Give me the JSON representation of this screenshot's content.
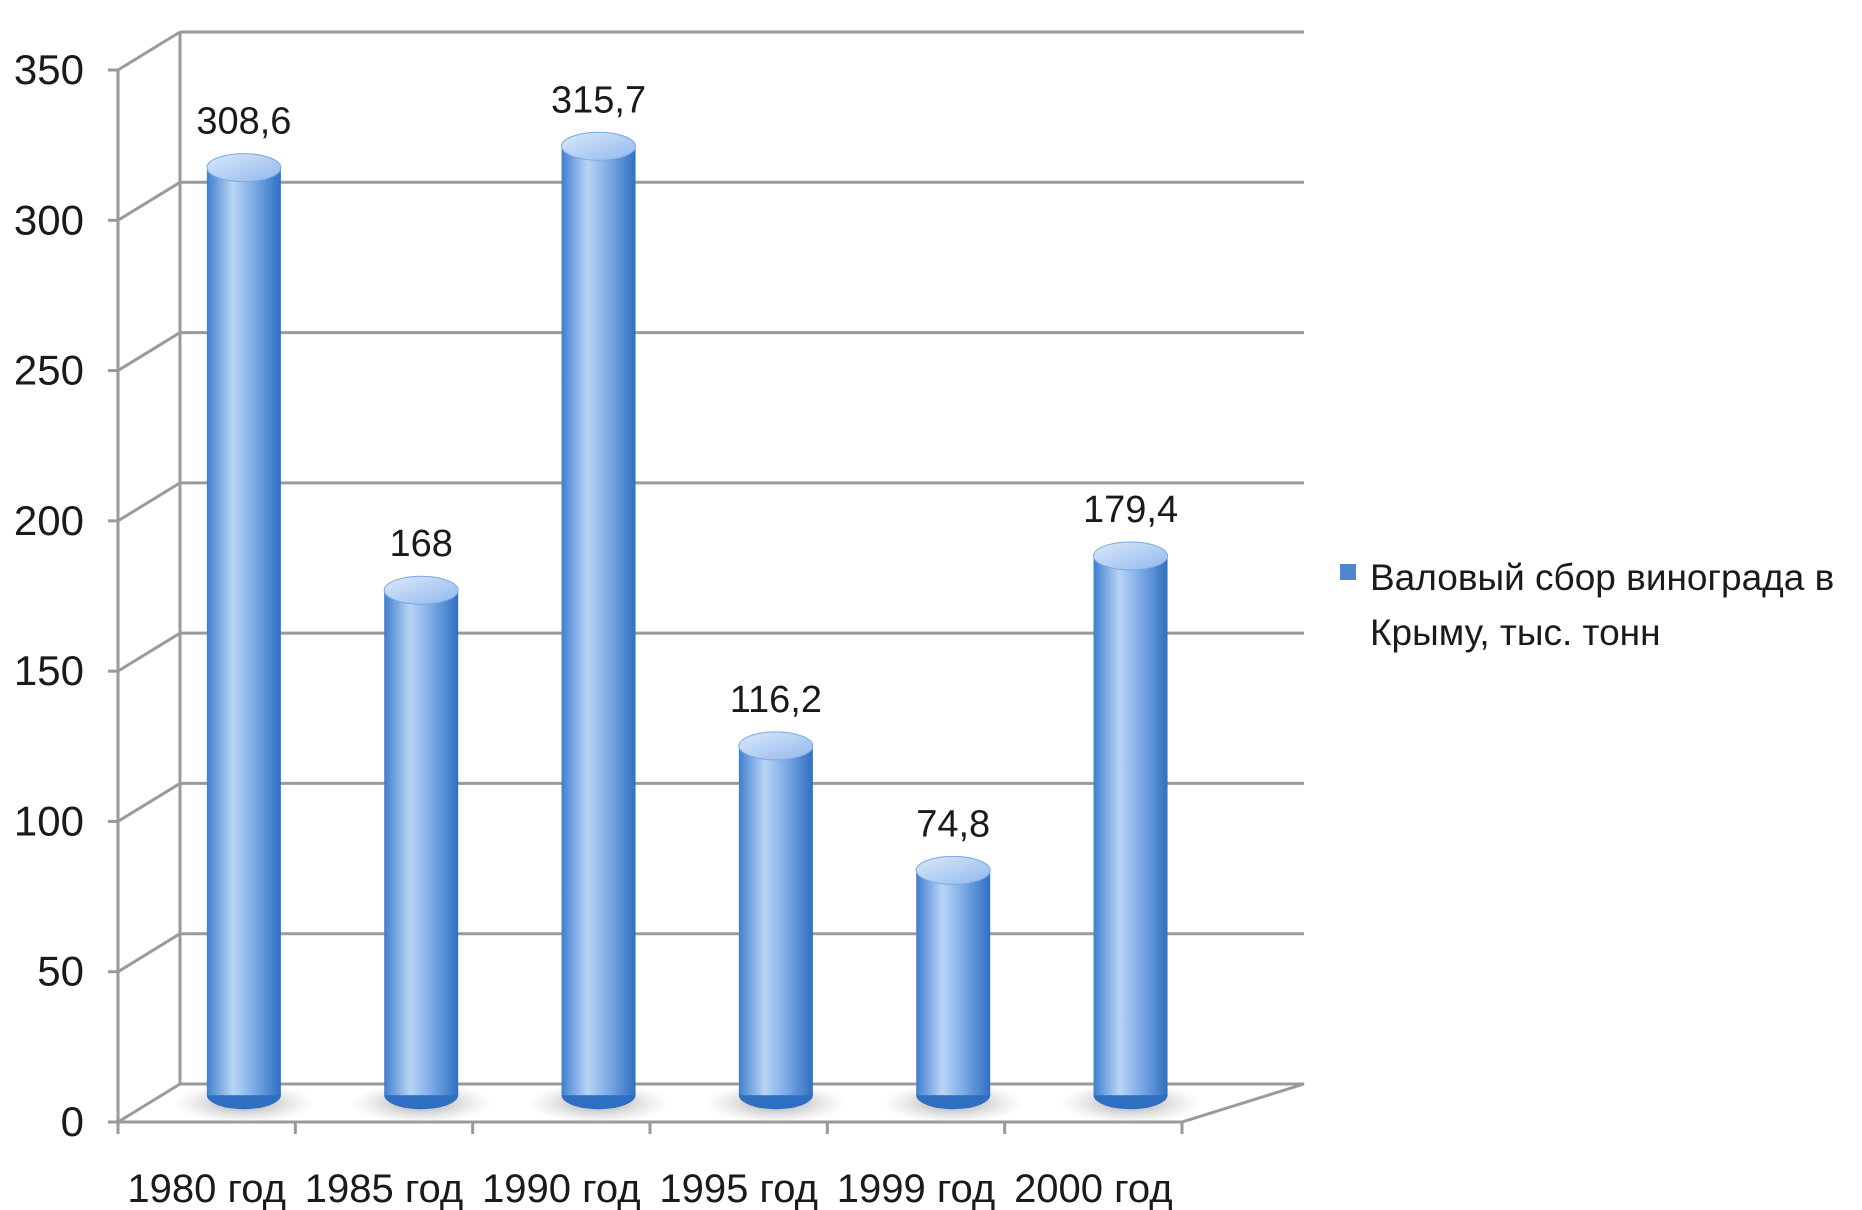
{
  "chart_data": {
    "type": "bar",
    "categories": [
      "1980 год",
      "1985 год",
      "1990 год",
      "1995 год",
      "1999 год",
      "2000 год"
    ],
    "series": [
      {
        "name": "Валовый сбор винограда в Крыму, тыс. тонн",
        "values": [
          308.6,
          168,
          315.7,
          116.2,
          74.8,
          179.4
        ],
        "data_labels": [
          "308,6",
          "168",
          "315,7",
          "116,2",
          "74,8",
          "179,4"
        ]
      }
    ],
    "yticks": [
      "0",
      "50",
      "100",
      "150",
      "200",
      "250",
      "300",
      "350"
    ],
    "ylim": [
      0,
      350
    ],
    "grid": true,
    "legend": {
      "position": "right",
      "lines": [
        "Валовый сбор винограда в",
        "Крыму, тыс. тонн"
      ]
    },
    "colors": {
      "bar_light": "#b9d4f4",
      "bar_mid": "#6ea2e2",
      "bar_dark": "#2f6fc2",
      "grid": "#9a9a9a",
      "legend_swatch": "#4f86cf"
    }
  }
}
